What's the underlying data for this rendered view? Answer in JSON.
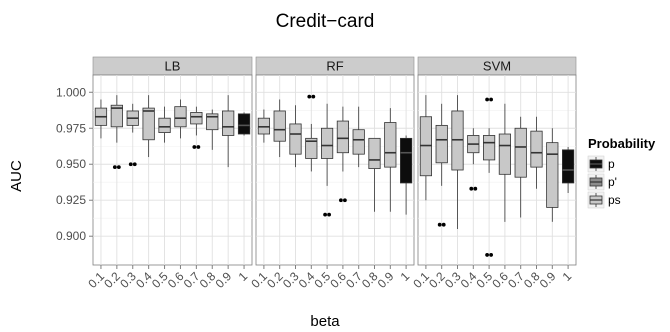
{
  "chart_data": {
    "type": "boxplot",
    "title": "Credit−card",
    "xlabel": "beta",
    "ylabel": "AUC",
    "ylim": [
      0.88,
      1.012
    ],
    "yticks": [
      0.9,
      0.925,
      0.95,
      0.975,
      1.0
    ],
    "ytick_labels": [
      "0.900",
      "0.925",
      "0.950",
      "0.975",
      "1.000"
    ],
    "categories": [
      "0.1",
      "0.2",
      "0.3",
      "0.4",
      "0.5",
      "0.6",
      "0.7",
      "0.8",
      "0.9",
      "1"
    ],
    "panels": [
      "LB",
      "RF",
      "SVM"
    ],
    "grid": true,
    "legend": {
      "title": "Probability",
      "position": "right",
      "entries": [
        {
          "label": "p",
          "color": "#0d0d0d"
        },
        {
          "label": "p'",
          "color": "#8c8c8c"
        },
        {
          "label": "ps",
          "color": "#c8c8c8"
        }
      ]
    },
    "series": [
      {
        "panel": "LB",
        "boxes": [
          {
            "x": "0.1",
            "group": "ps",
            "min": 0.968,
            "q1": 0.977,
            "median": 0.983,
            "q3": 0.989,
            "max": 0.995,
            "outliers": []
          },
          {
            "x": "0.2",
            "group": "ps",
            "min": 0.965,
            "q1": 0.976,
            "median": 0.989,
            "q3": 0.991,
            "max": 0.998,
            "outliers": [
              0.948
            ]
          },
          {
            "x": "0.3",
            "group": "ps",
            "min": 0.972,
            "q1": 0.977,
            "median": 0.982,
            "q3": 0.987,
            "max": 0.992,
            "outliers": [
              0.95
            ]
          },
          {
            "x": "0.4",
            "group": "ps",
            "min": 0.955,
            "q1": 0.967,
            "median": 0.987,
            "q3": 0.989,
            "max": 0.998,
            "outliers": []
          },
          {
            "x": "0.5",
            "group": "ps",
            "min": 0.965,
            "q1": 0.972,
            "median": 0.976,
            "q3": 0.982,
            "max": 0.99,
            "outliers": []
          },
          {
            "x": "0.6",
            "group": "ps",
            "min": 0.968,
            "q1": 0.976,
            "median": 0.982,
            "q3": 0.99,
            "max": 0.995,
            "outliers": []
          },
          {
            "x": "0.7",
            "group": "ps",
            "min": 0.97,
            "q1": 0.978,
            "median": 0.983,
            "q3": 0.986,
            "max": 0.99,
            "outliers": [
              0.962
            ]
          },
          {
            "x": "0.8",
            "group": "ps",
            "min": 0.96,
            "q1": 0.974,
            "median": 0.983,
            "q3": 0.985,
            "max": 0.988,
            "outliers": []
          },
          {
            "x": "0.9",
            "group": "ps",
            "min": 0.948,
            "q1": 0.97,
            "median": 0.976,
            "q3": 0.987,
            "max": 0.998,
            "outliers": []
          },
          {
            "x": "1",
            "group": "p",
            "min": 0.97,
            "q1": 0.971,
            "median": 0.977,
            "q3": 0.985,
            "max": 0.986,
            "outliers": []
          }
        ]
      },
      {
        "panel": "RF",
        "boxes": [
          {
            "x": "0.1",
            "group": "ps",
            "min": 0.965,
            "q1": 0.971,
            "median": 0.976,
            "q3": 0.982,
            "max": 0.988,
            "outliers": []
          },
          {
            "x": "0.2",
            "group": "ps",
            "min": 0.955,
            "q1": 0.966,
            "median": 0.974,
            "q3": 0.987,
            "max": 0.995,
            "outliers": []
          },
          {
            "x": "0.3",
            "group": "ps",
            "min": 0.948,
            "q1": 0.957,
            "median": 0.971,
            "q3": 0.978,
            "max": 0.991,
            "outliers": []
          },
          {
            "x": "0.4",
            "group": "ps",
            "min": 0.945,
            "q1": 0.954,
            "median": 0.966,
            "q3": 0.968,
            "max": 0.978,
            "outliers": [
              0.997
            ]
          },
          {
            "x": "0.5",
            "group": "ps",
            "min": 0.935,
            "q1": 0.954,
            "median": 0.963,
            "q3": 0.975,
            "max": 0.992,
            "outliers": [
              0.915
            ]
          },
          {
            "x": "0.6",
            "group": "ps",
            "min": 0.945,
            "q1": 0.958,
            "median": 0.968,
            "q3": 0.98,
            "max": 0.99,
            "outliers": [
              0.925
            ]
          },
          {
            "x": "0.7",
            "group": "ps",
            "min": 0.948,
            "q1": 0.957,
            "median": 0.967,
            "q3": 0.974,
            "max": 0.99,
            "outliers": []
          },
          {
            "x": "0.8",
            "group": "ps",
            "min": 0.917,
            "q1": 0.947,
            "median": 0.953,
            "q3": 0.968,
            "max": 0.968,
            "outliers": []
          },
          {
            "x": "0.9",
            "group": "ps",
            "min": 0.917,
            "q1": 0.948,
            "median": 0.958,
            "q3": 0.979,
            "max": 0.989,
            "outliers": []
          },
          {
            "x": "1",
            "group": "p",
            "min": 0.915,
            "q1": 0.937,
            "median": 0.958,
            "q3": 0.968,
            "max": 0.97,
            "outliers": []
          }
        ]
      },
      {
        "panel": "SVM",
        "boxes": [
          {
            "x": "0.1",
            "group": "ps",
            "min": 0.925,
            "q1": 0.942,
            "median": 0.963,
            "q3": 0.983,
            "max": 0.998,
            "outliers": []
          },
          {
            "x": "0.2",
            "group": "ps",
            "min": 0.935,
            "q1": 0.951,
            "median": 0.967,
            "q3": 0.977,
            "max": 0.992,
            "outliers": [
              0.908
            ]
          },
          {
            "x": "0.3",
            "group": "ps",
            "min": 0.905,
            "q1": 0.946,
            "median": 0.967,
            "q3": 0.987,
            "max": 0.998,
            "outliers": []
          },
          {
            "x": "0.4",
            "group": "ps",
            "min": 0.95,
            "q1": 0.958,
            "median": 0.964,
            "q3": 0.97,
            "max": 0.975,
            "outliers": [
              0.933
            ]
          },
          {
            "x": "0.5",
            "group": "ps",
            "min": 0.944,
            "q1": 0.953,
            "median": 0.965,
            "q3": 0.97,
            "max": 0.975,
            "outliers": [
              0.995,
              0.887
            ]
          },
          {
            "x": "0.6",
            "group": "ps",
            "min": 0.91,
            "q1": 0.943,
            "median": 0.963,
            "q3": 0.971,
            "max": 0.992,
            "outliers": []
          },
          {
            "x": "0.7",
            "group": "ps",
            "min": 0.913,
            "q1": 0.941,
            "median": 0.962,
            "q3": 0.975,
            "max": 0.983,
            "outliers": []
          },
          {
            "x": "0.8",
            "group": "ps",
            "min": 0.933,
            "q1": 0.948,
            "median": 0.958,
            "q3": 0.973,
            "max": 0.983,
            "outliers": []
          },
          {
            "x": "0.9",
            "group": "ps",
            "min": 0.91,
            "q1": 0.92,
            "median": 0.957,
            "q3": 0.965,
            "max": 0.975,
            "outliers": []
          },
          {
            "x": "1",
            "group": "p",
            "min": 0.93,
            "q1": 0.937,
            "median": 0.946,
            "q3": 0.96,
            "max": 0.962,
            "outliers": []
          }
        ]
      }
    ]
  }
}
